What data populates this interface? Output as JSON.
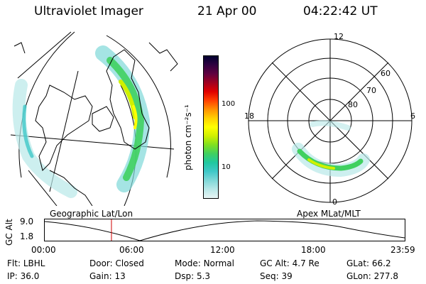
{
  "header": {
    "instrument": "Ultraviolet Imager",
    "date": "21 Apr 00",
    "time": "04:22:42 UT"
  },
  "colorbar": {
    "unit_label": "photon cm⁻²s⁻¹",
    "tick_100": "100",
    "tick_10": "10",
    "colors": [
      "#e8f4f4",
      "#b8e8e8",
      "#7fd8d8",
      "#40c8c8",
      "#20c8a0",
      "#40d060",
      "#80e020",
      "#d0f000",
      "#ffff00",
      "#ffd000",
      "#ff9000",
      "#ff4000",
      "#e00000",
      "#a00020",
      "#600040",
      "#300040",
      "#000030"
    ]
  },
  "polar": {
    "mlt_12": "12",
    "mlt_18": "18",
    "mlt_6": "6",
    "mlt_0": "0",
    "lat_60": "60",
    "lat_70": "70",
    "lat_80": "80"
  },
  "panels": {
    "geo_label": "Geographic Lat/Lon",
    "apex_label": "Apex MLat/MLT"
  },
  "altitude_plot": {
    "axis_label": "GC Alt",
    "y_top": "9.0",
    "y_bottom": "1.8",
    "x_ticks": [
      "00:00",
      "06:00",
      "12:00",
      "18:00",
      "23:59"
    ],
    "current_time_fraction": 0.185,
    "line_color": "#000000",
    "marker_color": "#d00000"
  },
  "info": {
    "filter_label": "Flt:",
    "filter_value": "LBHL",
    "door_label": "Door:",
    "door_value": "Closed",
    "mode_label": "Mode:",
    "mode_value": "Normal",
    "gcalt_label": "GC Alt:",
    "gcalt_value": "4.7 Re",
    "glat_label": "GLat:",
    "glat_value": "66.2",
    "ip_label": "IP:",
    "ip_value": "36.0",
    "gain_label": "Gain:",
    "gain_value": "13",
    "dsp_label": "Dsp:",
    "dsp_value": "5.3",
    "seq_label": "Seq:",
    "seq_value": "39",
    "glon_label": "GLon:",
    "glon_value": "277.8"
  }
}
